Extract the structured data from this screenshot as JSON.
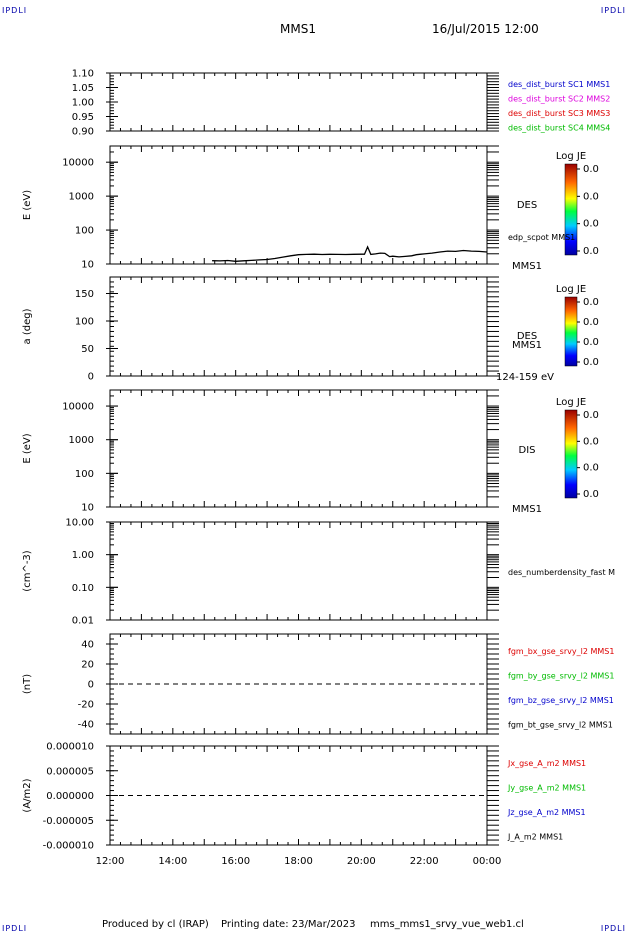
{
  "corner_tags": [
    "IPDLI",
    "IPDLI",
    "IPDLI",
    "IPDLI"
  ],
  "header": {
    "mission": "MMS1",
    "datetime": "16/Jul/2015 12:00"
  },
  "footer": {
    "produced_by": "Produced by cl (IRAP)",
    "printing_date": "Printing date: 23/Mar/2023",
    "filename": "mms_mms1_srvy_vue_web1.cl"
  },
  "x_axis": {
    "ticks": [
      "12:00",
      "14:00",
      "16:00",
      "18:00",
      "20:00",
      "22:00",
      "00:00"
    ],
    "range": [
      12,
      24
    ]
  },
  "colors": {
    "blue": "#0000cc",
    "magenta": "#dd00dd",
    "red": "#dd0000",
    "green": "#00bb00",
    "black": "#000000"
  },
  "chart_data": [
    {
      "type": "line",
      "ylabel": "",
      "yscale": "linear",
      "ylim": [
        0.9,
        1.1
      ],
      "yticks": [
        "1.10",
        "1.05",
        "1.00",
        "0.95",
        "0.90"
      ],
      "legend": [
        {
          "text": "des_dist_burst SC1 MMS1",
          "color": "blue"
        },
        {
          "text": "des_dist_burst SC2 MMS2",
          "color": "magenta"
        },
        {
          "text": "des_dist_burst SC3 MMS3",
          "color": "red"
        },
        {
          "text": "des_dist_burst SC4 MMS4",
          "color": "green"
        }
      ],
      "series": []
    },
    {
      "type": "heatmap",
      "ylabel": "E (eV)",
      "yscale": "log",
      "ylim": [
        10,
        30000
      ],
      "yticks": [
        "10000",
        "1000",
        "100",
        "10"
      ],
      "side_label": "DES",
      "bottom_label": "MMS1",
      "colorbar": {
        "title": "Log JE",
        "ticks": [
          "0.0",
          "0.0",
          "0.0",
          "0.0"
        ]
      },
      "series_label": "edp_scpot MMS1",
      "series": [
        {
          "name": "edp_scpot MMS1",
          "x": [
            15.25,
            15.5,
            15.75,
            16.0,
            16.25,
            16.5,
            16.75,
            17.0,
            17.25,
            17.5,
            17.75,
            18.0,
            18.25,
            18.5,
            18.75,
            19.0,
            19.25,
            19.5,
            19.75,
            20.0,
            20.1,
            20.2,
            20.3,
            20.45,
            20.6,
            20.75,
            20.9,
            21.0,
            21.2,
            21.4,
            21.6,
            21.75,
            21.9,
            22.0,
            22.25,
            22.5,
            22.75,
            23.0,
            23.25,
            23.5,
            23.75,
            24.0
          ],
          "y": [
            12.5,
            12.3,
            12.7,
            12.0,
            12.4,
            12.8,
            13.2,
            13.6,
            14.5,
            16.0,
            17.5,
            18.8,
            19.2,
            19.4,
            19.1,
            19.3,
            19.2,
            19.0,
            19.3,
            19.5,
            19.4,
            32.0,
            19.2,
            19.8,
            21.0,
            20.5,
            16.5,
            17.0,
            16.2,
            16.8,
            17.5,
            18.8,
            19.5,
            19.8,
            21.0,
            22.5,
            24.0,
            23.5,
            25.0,
            24.0,
            23.5,
            22.5
          ]
        }
      ]
    },
    {
      "type": "heatmap",
      "ylabel": "a (deg)",
      "yscale": "linear",
      "ylim": [
        0,
        180
      ],
      "yticks": [
        "150",
        "100",
        "50",
        "0"
      ],
      "side_label": "DES",
      "bottom_label": "MMS1",
      "extra_label": "124-159 eV",
      "colorbar": {
        "title": "Log JE",
        "ticks": [
          "0.0",
          "0.0",
          "0.0",
          "0.0"
        ]
      },
      "series": []
    },
    {
      "type": "heatmap",
      "ylabel": "E (eV)",
      "yscale": "log",
      "ylim": [
        10,
        30000
      ],
      "yticks": [
        "10000",
        "1000",
        "100",
        "10"
      ],
      "side_label": "DIS",
      "bottom_label": "MMS1",
      "colorbar": {
        "title": "Log JE",
        "ticks": [
          "0.0",
          "0.0",
          "0.0",
          "0.0"
        ]
      },
      "series": []
    },
    {
      "type": "line",
      "ylabel": "(cm^-3)",
      "yscale": "log",
      "ylim": [
        0.01,
        10
      ],
      "yticks": [
        "10.00",
        "1.00",
        "0.10",
        "0.01"
      ],
      "legend": [
        {
          "text": "des_numberdensity_fast M",
          "color": "black"
        }
      ],
      "series": []
    },
    {
      "type": "line",
      "ylabel": "(nT)",
      "yscale": "linear",
      "ylim": [
        -50,
        50
      ],
      "yticks": [
        "40",
        "20",
        "0",
        "-20",
        "-40"
      ],
      "zero_line": true,
      "legend": [
        {
          "text": "fgm_bx_gse_srvy_l2 MMS1",
          "color": "red"
        },
        {
          "text": "fgm_by_gse_srvy_l2 MMS1",
          "color": "green"
        },
        {
          "text": "fgm_bz_gse_srvy_l2 MMS1",
          "color": "blue"
        },
        {
          "text": "fgm_bt_gse_srvy_l2 MMS1",
          "color": "black"
        }
      ],
      "series": []
    },
    {
      "type": "line",
      "ylabel": "(A/m2)",
      "yscale": "linear",
      "ylim": [
        -1e-05,
        1e-05
      ],
      "yticks": [
        "0.000010",
        "0.000005",
        "0.000000",
        "-0.000005",
        "-0.000010"
      ],
      "zero_line": true,
      "legend": [
        {
          "text": "Jx_gse_A_m2 MMS1",
          "color": "red"
        },
        {
          "text": "Jy_gse_A_m2 MMS1",
          "color": "green"
        },
        {
          "text": "Jz_gse_A_m2 MMS1",
          "color": "blue"
        },
        {
          "text": "J_A_m2 MMS1",
          "color": "black"
        }
      ],
      "series": []
    }
  ]
}
